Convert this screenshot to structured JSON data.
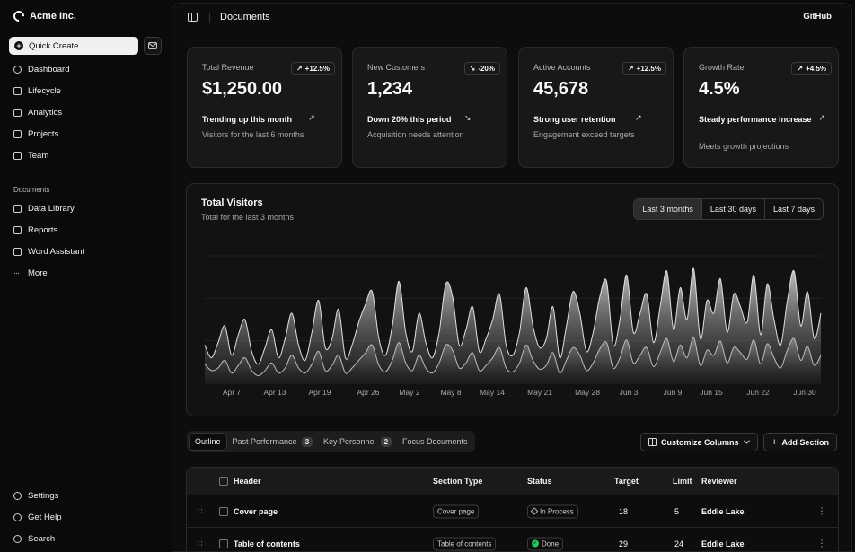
{
  "sidebar": {
    "brand": "Acme Inc.",
    "quick_create": "Quick Create",
    "main_items": [
      {
        "label": "Dashboard",
        "icon": "gauge-icon"
      },
      {
        "label": "Lifecycle",
        "icon": "list-icon"
      },
      {
        "label": "Analytics",
        "icon": "bar-chart-icon"
      },
      {
        "label": "Projects",
        "icon": "folder-icon"
      },
      {
        "label": "Team",
        "icon": "users-icon"
      }
    ],
    "documents_label": "Documents",
    "document_items": [
      {
        "label": "Data Library",
        "icon": "database-icon"
      },
      {
        "label": "Reports",
        "icon": "report-icon"
      },
      {
        "label": "Word Assistant",
        "icon": "file-text-icon"
      },
      {
        "label": "More",
        "icon": "ellipsis-icon"
      }
    ],
    "bottom_items": [
      {
        "label": "Settings",
        "icon": "gear-icon"
      },
      {
        "label": "Get Help",
        "icon": "help-icon"
      },
      {
        "label": "Search",
        "icon": "search-icon"
      }
    ]
  },
  "header": {
    "title": "Documents",
    "github": "GitHub"
  },
  "cards": [
    {
      "label": "Total Revenue",
      "badge": "+12.5%",
      "badge_dir": "up",
      "value": "$1,250.00",
      "trend": "Trending up this month",
      "trend_dir": "up",
      "sub": "Visitors for the last 6 months"
    },
    {
      "label": "New Customers",
      "badge": "-20%",
      "badge_dir": "down",
      "value": "1,234",
      "trend": "Down 20% this period",
      "trend_dir": "down",
      "sub": "Acquisition needs attention"
    },
    {
      "label": "Active Accounts",
      "badge": "+12.5%",
      "badge_dir": "up",
      "value": "45,678",
      "trend": "Strong user retention",
      "trend_dir": "up",
      "sub": "Engagement exceed targets"
    },
    {
      "label": "Growth Rate",
      "badge": "+4.5%",
      "badge_dir": "up",
      "value": "4.5%",
      "trend": "Steady performance increase",
      "trend_dir": "up",
      "sub": "Meets growth projections"
    }
  ],
  "chart_section": {
    "title": "Total Visitors",
    "subtitle": "Total for the last 3 months",
    "ranges": [
      "Last 3 months",
      "Last 30 days",
      "Last 7 days"
    ],
    "active_range": 0
  },
  "chart_data": {
    "type": "area",
    "x_ticks": [
      "Apr 7",
      "Apr 13",
      "Apr 19",
      "Apr 26",
      "May 2",
      "May 8",
      "May 14",
      "May 21",
      "May 28",
      "Jun 3",
      "Jun 9",
      "Jun 15",
      "Jun 22",
      "Jun 30"
    ],
    "grid": true,
    "ylim": [
      0,
      100
    ],
    "series": [
      {
        "values": [
          30,
          20,
          32,
          45,
          22,
          38,
          50,
          25,
          15,
          28,
          42,
          20,
          35,
          55,
          30,
          18,
          40,
          65,
          28,
          35,
          58,
          20,
          30,
          48,
          62,
          72,
          35,
          22,
          45,
          80,
          40,
          25,
          55,
          32,
          20,
          40,
          78,
          68,
          30,
          42,
          60,
          25,
          35,
          50,
          70,
          30,
          22,
          40,
          75,
          45,
          28,
          35,
          60,
          20,
          45,
          72,
          55,
          25,
          40,
          68,
          80,
          30,
          50,
          85,
          40,
          55,
          70,
          32,
          60,
          88,
          42,
          75,
          50,
          90,
          35,
          65,
          55,
          82,
          40,
          70,
          60,
          48,
          85,
          38,
          78,
          50,
          30,
          65,
          88,
          45,
          72,
          35,
          55
        ]
      },
      {
        "values": [
          15,
          10,
          12,
          18,
          8,
          14,
          20,
          10,
          6,
          10,
          16,
          8,
          12,
          22,
          12,
          8,
          15,
          25,
          10,
          14,
          22,
          8,
          12,
          18,
          24,
          30,
          14,
          9,
          18,
          32,
          16,
          10,
          22,
          12,
          8,
          16,
          30,
          26,
          12,
          16,
          24,
          10,
          14,
          20,
          28,
          12,
          9,
          16,
          30,
          18,
          11,
          14,
          24,
          8,
          18,
          28,
          22,
          10,
          16,
          27,
          32,
          12,
          20,
          34,
          16,
          22,
          28,
          13,
          24,
          35,
          17,
          30,
          20,
          36,
          14,
          26,
          22,
          33,
          16,
          28,
          24,
          19,
          34,
          15,
          31,
          20,
          12,
          26,
          35,
          18,
          29,
          14,
          22
        ]
      }
    ]
  },
  "tabs": [
    {
      "label": "Outline",
      "count": ""
    },
    {
      "label": "Past Performance",
      "count": "3"
    },
    {
      "label": "Key Personnel",
      "count": "2"
    },
    {
      "label": "Focus Documents",
      "count": ""
    }
  ],
  "toolbar": {
    "customize": "Customize Columns",
    "add_section": "Add Section"
  },
  "table": {
    "headers": {
      "header": "Header",
      "type": "Section Type",
      "status": "Status",
      "target": "Target",
      "limit": "Limit",
      "reviewer": "Reviewer"
    },
    "rows": [
      {
        "header": "Cover page",
        "type": "Cover page",
        "status": "In Process",
        "status_kind": "process",
        "target": "18",
        "limit": "5",
        "reviewer": "Eddie Lake"
      },
      {
        "header": "Table of contents",
        "type": "Table of contents",
        "status": "Done",
        "status_kind": "done",
        "target": "29",
        "limit": "24",
        "reviewer": "Eddie Lake"
      }
    ]
  }
}
